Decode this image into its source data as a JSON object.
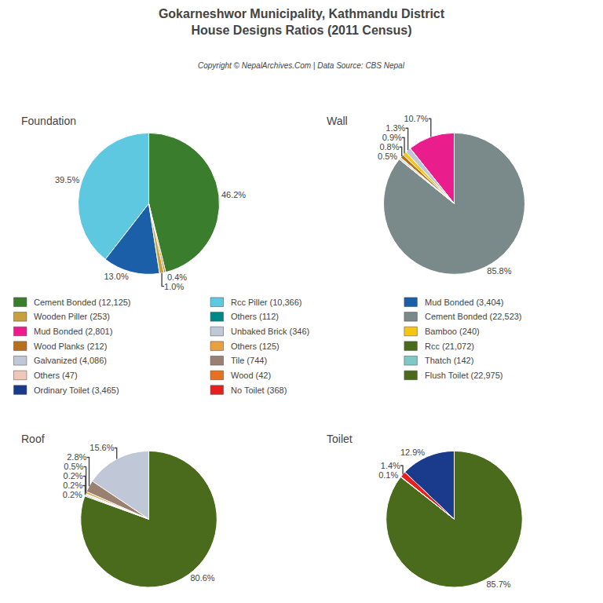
{
  "title": "Gokarneshwor Municipality, Kathmandu District\nHouse Designs Ratios (2011 Census)",
  "subtitle": "Copyright © NepalArchives.Com | Data Source: CBS Nepal",
  "chart_data": [
    {
      "type": "pie",
      "title": "Foundation",
      "values": [
        46.2,
        39.5,
        13.0,
        1.0,
        0.4
      ],
      "value_labels": [
        "46.2%",
        "39.5%",
        "13.0%",
        "1.0%",
        "0.4%"
      ],
      "data_labels": true,
      "colors": [
        "#3a7d2c",
        "#5ec8e0",
        "#1a5fa8",
        "#c8a040",
        "#d08020"
      ]
    },
    {
      "type": "pie",
      "title": "Wall",
      "values": [
        85.8,
        10.7,
        1.3,
        0.9,
        0.8,
        0.5
      ],
      "value_labels": [
        "85.8%",
        "10.7%",
        "1.3%",
        "0.9%",
        "0.8%",
        "0.5%"
      ],
      "data_labels": true,
      "colors": [
        "#7a8a8a",
        "#e91e8c",
        "#c0c8d8",
        "#f5c518",
        "#b87020",
        "#e0e0e0"
      ]
    },
    {
      "type": "pie",
      "title": "Roof",
      "values": [
        80.6,
        15.6,
        2.8,
        0.5,
        0.2,
        0.2,
        0.2
      ],
      "value_labels": [
        "80.6%",
        "15.6%",
        "2.8%",
        "0.5%",
        "0.2%",
        "0.2%",
        "0.2%"
      ],
      "data_labels": true,
      "colors": [
        "#4a6a1c",
        "#c0c8d8",
        "#9a8070",
        "#e8a040",
        "#e87020",
        "#b8960c",
        "#008888"
      ]
    },
    {
      "type": "pie",
      "title": "Toilet",
      "values": [
        85.7,
        12.9,
        1.4,
        0.1
      ],
      "value_labels": [
        "85.7%",
        "12.9%",
        "1.4%",
        "0.1%"
      ],
      "data_labels": true,
      "colors": [
        "#4a6a1c",
        "#1a3a8c",
        "#e91e1e",
        "#b8960c"
      ]
    }
  ],
  "legend_columns": [
    [
      {
        "label": "Cement Bonded (12,125)",
        "color": "#3a7d2c"
      },
      {
        "label": "Wooden Piller (253)",
        "color": "#c8a040"
      },
      {
        "label": "Mud Bonded (2,801)",
        "color": "#e91e8c"
      },
      {
        "label": "Wood Planks (212)",
        "color": "#b87020"
      },
      {
        "label": "Galvanized (4,086)",
        "color": "#c0c8d8"
      },
      {
        "label": "Others (47)",
        "color": "#f0c8b8"
      },
      {
        "label": "Ordinary Toilet (3,465)",
        "color": "#1a3a8c"
      }
    ],
    [
      {
        "label": "Rcc Piller (10,366)",
        "color": "#5ec8e0"
      },
      {
        "label": "Others (112)",
        "color": "#008888"
      },
      {
        "label": "Unbaked Brick (346)",
        "color": "#c0c8d8"
      },
      {
        "label": "Others (125)",
        "color": "#e8a040"
      },
      {
        "label": "Tile (744)",
        "color": "#9a8070"
      },
      {
        "label": "Wood (42)",
        "color": "#e87020"
      },
      {
        "label": "No Toilet (368)",
        "color": "#e91e1e"
      }
    ],
    [
      {
        "label": "Mud Bonded (3,404)",
        "color": "#1a5fa8"
      },
      {
        "label": "Cement Bonded (22,523)",
        "color": "#7a8a8a"
      },
      {
        "label": "Bamboo (240)",
        "color": "#f5c518"
      },
      {
        "label": "Rcc (21,072)",
        "color": "#4a6a1c"
      },
      {
        "label": "Thatch (142)",
        "color": "#7ec8c8"
      },
      {
        "label": "Flush Toilet (22,975)",
        "color": "#4a6a1c"
      }
    ]
  ]
}
